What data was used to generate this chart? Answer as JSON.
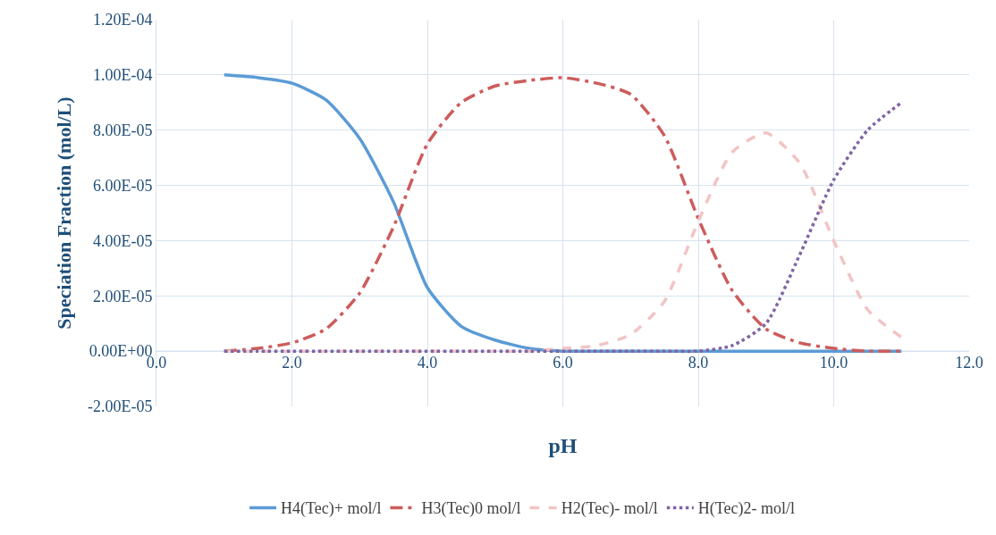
{
  "chart_data": {
    "type": "line",
    "xlabel": "pH",
    "ylabel": "Speciation Fraction (mol/L)",
    "x": [
      1,
      1.5,
      2,
      2.5,
      3,
      3.5,
      4,
      4.5,
      5,
      5.5,
      6,
      6.5,
      7,
      7.5,
      8,
      8.5,
      9,
      9.5,
      10,
      10.5,
      11
    ],
    "series": [
      {
        "name": "H4(Tec)+ mol/l",
        "color": "#5b9bd5",
        "line_style": "solid",
        "values": [
          0.0001,
          9.9e-05,
          9.7e-05,
          9.1e-05,
          7.7e-05,
          5.4e-05,
          2.3e-05,
          9e-06,
          4e-06,
          1e-06,
          0,
          0,
          0,
          0,
          0,
          0,
          0,
          0,
          0,
          0,
          0
        ]
      },
      {
        "name": "H3(Tec)0 mol/l",
        "color": "#cd5c5c",
        "line_style": "dashdot",
        "values": [
          0,
          1e-06,
          3e-06,
          8e-06,
          2.1e-05,
          4.5e-05,
          7.5e-05,
          9e-05,
          9.6e-05,
          9.8e-05,
          9.9e-05,
          9.7e-05,
          9.3e-05,
          7.8e-05,
          4.8e-05,
          2.2e-05,
          8e-06,
          3e-06,
          1e-06,
          0,
          0
        ]
      },
      {
        "name": "H2(Tec)- mol/l",
        "color": "#f2c4c4",
        "line_style": "dashed",
        "values": [
          0,
          0,
          0,
          0,
          0,
          0,
          0,
          0,
          0,
          0,
          1e-06,
          2e-06,
          6e-06,
          1.8e-05,
          4.7e-05,
          7.2e-05,
          7.9e-05,
          6.8e-05,
          4e-05,
          1.5e-05,
          5e-06
        ]
      },
      {
        "name": "H(Tec)2- mol/l",
        "color": "#8064a2",
        "line_style": "dotted",
        "values": [
          0,
          0,
          0,
          0,
          0,
          0,
          0,
          0,
          0,
          0,
          0,
          0,
          0,
          0,
          0,
          2e-06,
          1e-05,
          3.5e-05,
          6.2e-05,
          8e-05,
          9e-05
        ]
      }
    ],
    "xlim": [
      0,
      12
    ],
    "xticks": [
      {
        "value": 0,
        "label": "0.0"
      },
      {
        "value": 2,
        "label": "2.0"
      },
      {
        "value": 4,
        "label": "4.0"
      },
      {
        "value": 6,
        "label": "6.0"
      },
      {
        "value": 8,
        "label": "8.0"
      },
      {
        "value": 10,
        "label": "10.0"
      },
      {
        "value": 12,
        "label": "12.0"
      }
    ],
    "ylim": [
      -2e-05,
      0.00012
    ],
    "yticks": [
      {
        "value": -2e-05,
        "label": "-2.00E-05"
      },
      {
        "value": 0,
        "label": "0.00E+00"
      },
      {
        "value": 2e-05,
        "label": "2.00E-05"
      },
      {
        "value": 4e-05,
        "label": "4.00E-05"
      },
      {
        "value": 6e-05,
        "label": "6.00E-05"
      },
      {
        "value": 8e-05,
        "label": "8.00E-05"
      },
      {
        "value": 0.0001,
        "label": "1.00E-04"
      },
      {
        "value": 0.00012,
        "label": "1.20E-04"
      }
    ],
    "grid": true,
    "legend": "bottom",
    "marker": "none"
  }
}
